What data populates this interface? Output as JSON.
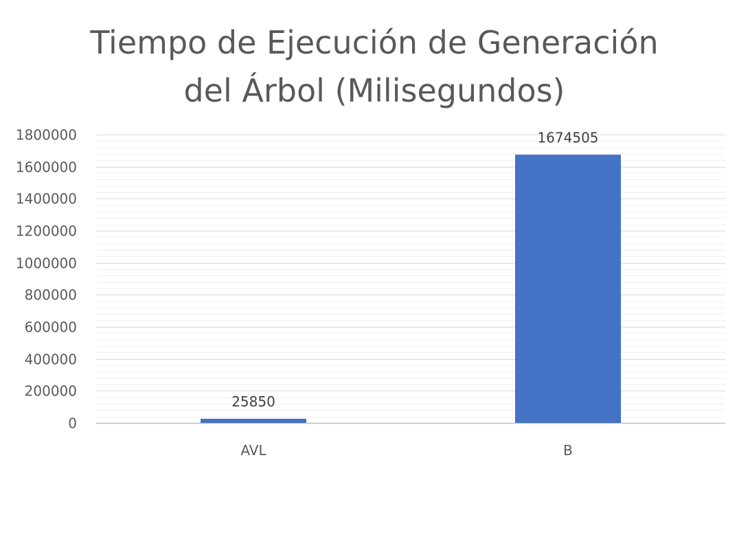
{
  "chart_data": {
    "type": "bar",
    "title_lines": [
      "Tiempo de Ejecución de Generación",
      "del Árbol (Milisegundos)"
    ],
    "categories": [
      "AVL",
      "B"
    ],
    "values": [
      25850,
      1674505
    ],
    "data_labels": [
      "25850",
      "1674505"
    ],
    "xlabel": "",
    "ylabel": "",
    "ylim": [
      0,
      1800000
    ],
    "major_tick_step": 200000,
    "minor_tick_step": 40000,
    "y_ticks": [
      "0",
      "200000",
      "400000",
      "600000",
      "800000",
      "1000000",
      "1200000",
      "1400000",
      "1600000",
      "1800000"
    ],
    "grid": true,
    "legend": "none",
    "colors": {
      "bar": "#4472C4",
      "major_grid": "#D9D9D9",
      "minor_grid": "#EFEFEF",
      "axis": "#BFBFBF",
      "text": "#595959",
      "label_text": "#404040"
    }
  }
}
